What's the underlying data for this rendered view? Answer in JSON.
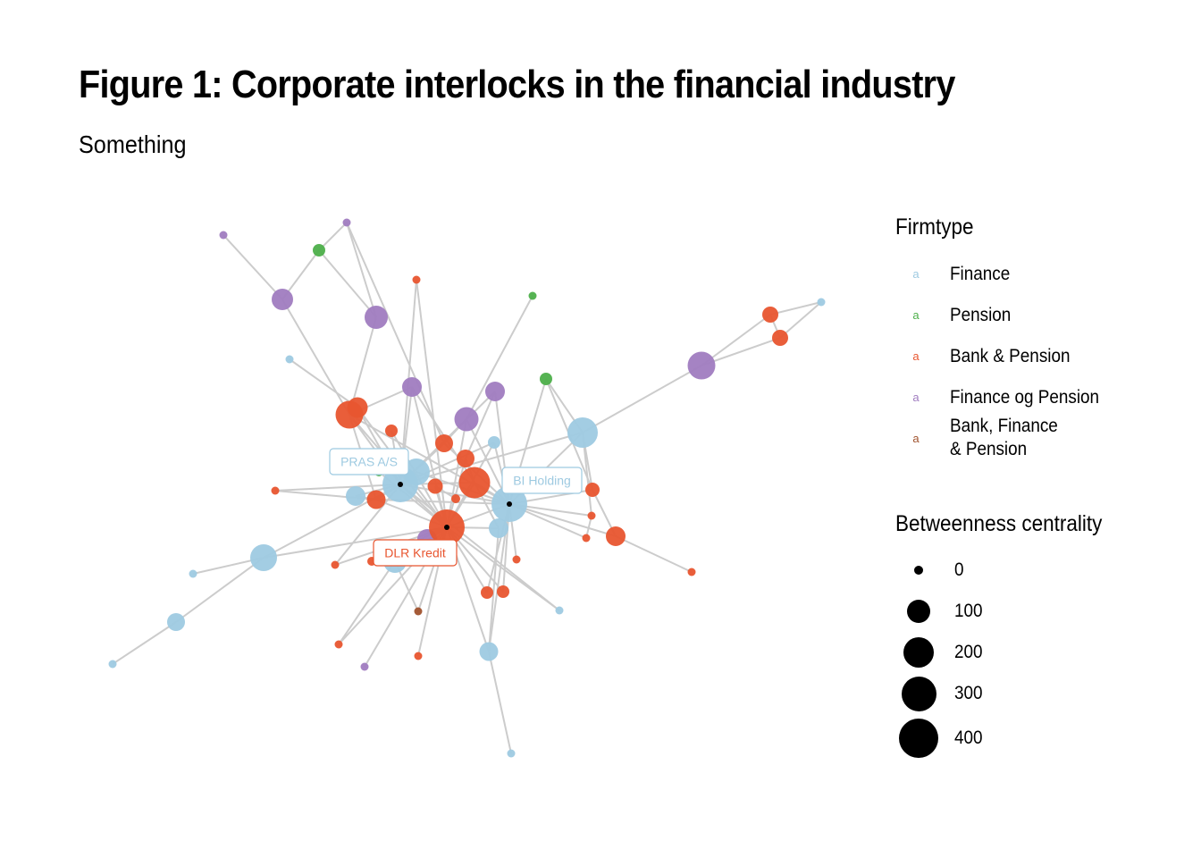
{
  "title": "Figure 1: Corporate interlocks in the financial industry",
  "subtitle": "Something",
  "colors": {
    "finance": "#9ecae1",
    "pension": "#4daf4a",
    "bank_pension": "#e8552f",
    "finance_og_pension": "#a07cc0",
    "bank_finance_pension": "#a0522d",
    "edge": "#cccccc"
  },
  "legend_firmtype": {
    "title": "Firmtype",
    "key_glyph": "a",
    "items": [
      {
        "label": "Finance",
        "color_key": "finance"
      },
      {
        "label": "Pension",
        "color_key": "pension"
      },
      {
        "label": "Bank & Pension",
        "color_key": "bank_pension"
      },
      {
        "label": "Finance og Pension",
        "color_key": "finance_og_pension"
      },
      {
        "label": "Bank, Finance\n& Pension",
        "color_key": "bank_finance_pension"
      }
    ]
  },
  "legend_centrality": {
    "title": "Betweenness centrality",
    "items": [
      {
        "label": "0",
        "value": 0
      },
      {
        "label": "100",
        "value": 100
      },
      {
        "label": "200",
        "value": 200
      },
      {
        "label": "300",
        "value": 300
      },
      {
        "label": "400",
        "value": 400
      }
    ]
  },
  "node_labels": [
    {
      "id": "pras",
      "text": "PRAS A/S",
      "color_key": "finance"
    },
    {
      "id": "bi",
      "text": "BI Holding",
      "color_key": "finance"
    },
    {
      "id": "dlr",
      "text": "DLR Kredit",
      "color_key": "bank_pension"
    }
  ]
}
